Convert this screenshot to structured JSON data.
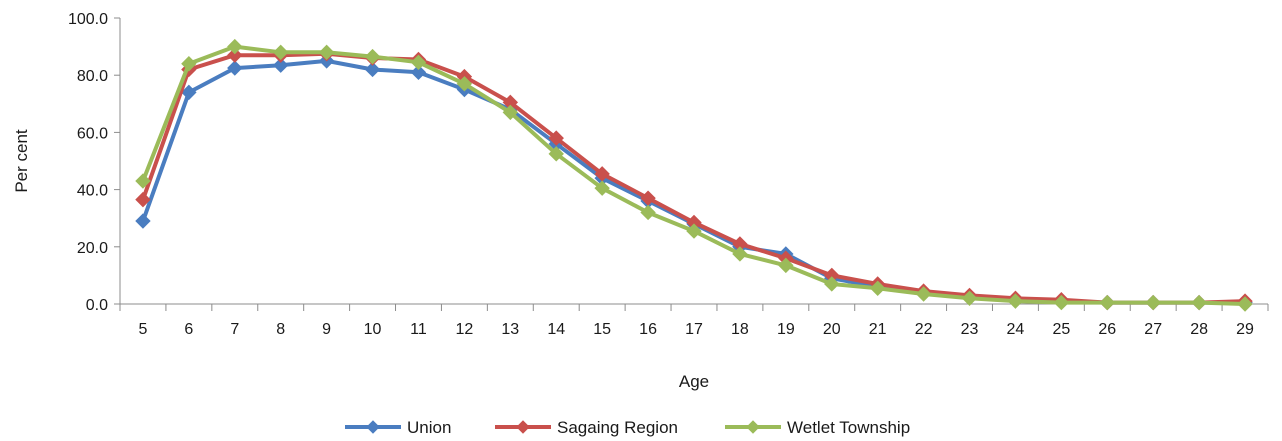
{
  "chart_data": {
    "type": "line",
    "title": "",
    "xlabel": "Age",
    "ylabel": "Per cent",
    "ylim": [
      0,
      100
    ],
    "yticks": [
      "0.0",
      "20.0",
      "40.0",
      "60.0",
      "80.0",
      "100.0"
    ],
    "ytick_values": [
      0,
      20,
      40,
      60,
      80,
      100
    ],
    "categories": [
      "5",
      "6",
      "7",
      "8",
      "9",
      "10",
      "11",
      "12",
      "13",
      "14",
      "15",
      "16",
      "17",
      "18",
      "19",
      "20",
      "21",
      "22",
      "23",
      "24",
      "25",
      "26",
      "27",
      "28",
      "29"
    ],
    "grid": false,
    "legend_position": "bottom",
    "series": [
      {
        "name": "Union",
        "color": "#4a7dc0",
        "marker": "diamond",
        "values": [
          29.0,
          74.0,
          82.5,
          83.5,
          85.0,
          82.0,
          81.0,
          75.0,
          68.0,
          56.0,
          44.0,
          36.0,
          28.0,
          20.0,
          17.5,
          9.0,
          6.0,
          4.0,
          2.5,
          1.5,
          1.0,
          0.5,
          0.5,
          0.5,
          0.5
        ]
      },
      {
        "name": "Sagaing Region",
        "color": "#c9504c",
        "marker": "diamond",
        "values": [
          36.5,
          82.0,
          87.0,
          87.0,
          87.5,
          86.0,
          85.5,
          79.5,
          70.5,
          58.0,
          45.5,
          37.0,
          28.5,
          21.0,
          16.0,
          10.0,
          7.0,
          4.5,
          3.0,
          2.0,
          1.5,
          0.5,
          0.5,
          0.5,
          1.0
        ]
      },
      {
        "name": "Wetlet Township",
        "color": "#9bbb59",
        "marker": "diamond",
        "values": [
          43.0,
          84.0,
          90.0,
          88.0,
          88.0,
          86.5,
          84.5,
          77.0,
          67.0,
          52.5,
          40.5,
          32.0,
          25.5,
          17.5,
          13.5,
          7.0,
          5.5,
          3.5,
          2.0,
          1.0,
          0.5,
          0.5,
          0.5,
          0.5,
          0.0
        ]
      }
    ]
  }
}
